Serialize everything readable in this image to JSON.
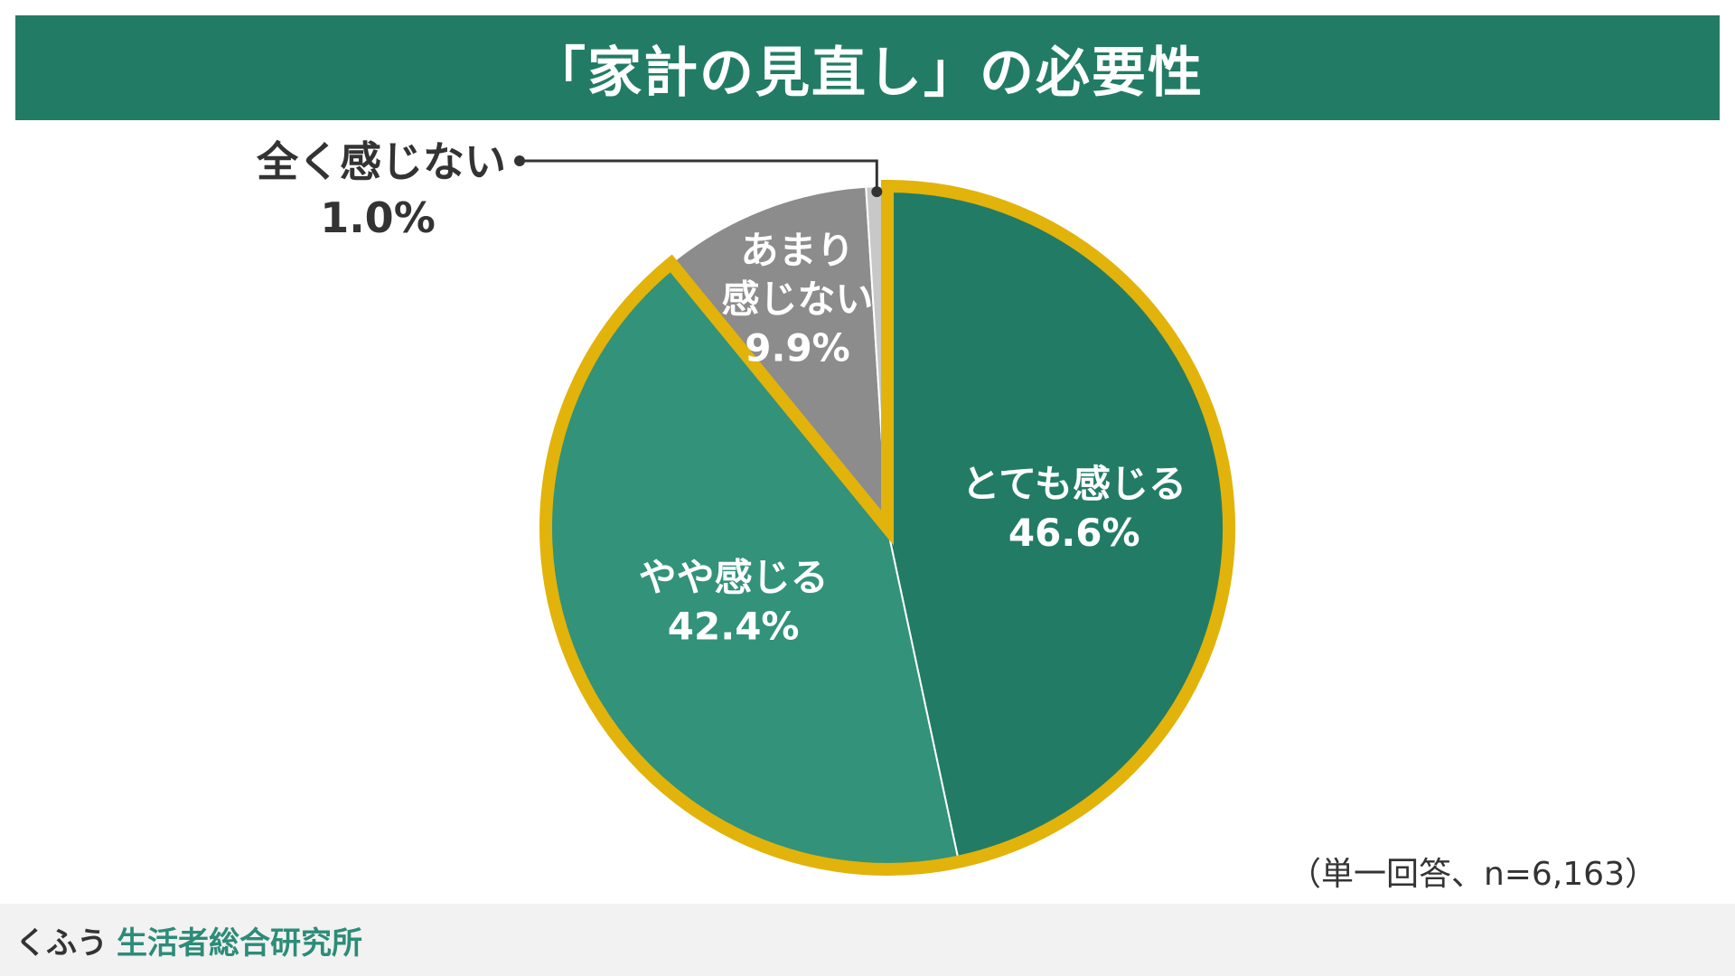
{
  "title": "「家計の見直し」の必要性",
  "note": "（単一回答、n=6,163）",
  "footer": {
    "brand_main": "くふう",
    "brand_sub": "生活者総合研究所"
  },
  "colors": {
    "header_bg": "#227C65",
    "outline": "#E2B30A",
    "footer_bg": "#F2F2F2",
    "brand_accent": "#2C8C78"
  },
  "chart_data": {
    "type": "pie",
    "title": "「家計の見直し」の必要性",
    "start": "12 o'clock, clockwise",
    "highlighted": [
      "とても感じる",
      "やや感じる"
    ],
    "slices": [
      {
        "label_lines": [
          "とても感じる"
        ],
        "pct": "46.6%",
        "value": 46.6,
        "color": "#227C65",
        "text_color": "#ffffff"
      },
      {
        "label_lines": [
          "やや感じる"
        ],
        "pct": "42.4%",
        "value": 42.4,
        "color": "#32927A",
        "text_color": "#ffffff"
      },
      {
        "label_lines": [
          "あまり",
          "感じない"
        ],
        "pct": "9.9%",
        "value": 9.9,
        "color": "#8C8C8C",
        "text_color": "#ffffff"
      },
      {
        "label_lines": [
          "全く感じない"
        ],
        "pct": "1.0%",
        "value": 1.0,
        "color": "#C8C8C8",
        "text_color": "#333333",
        "callout": true
      }
    ]
  }
}
